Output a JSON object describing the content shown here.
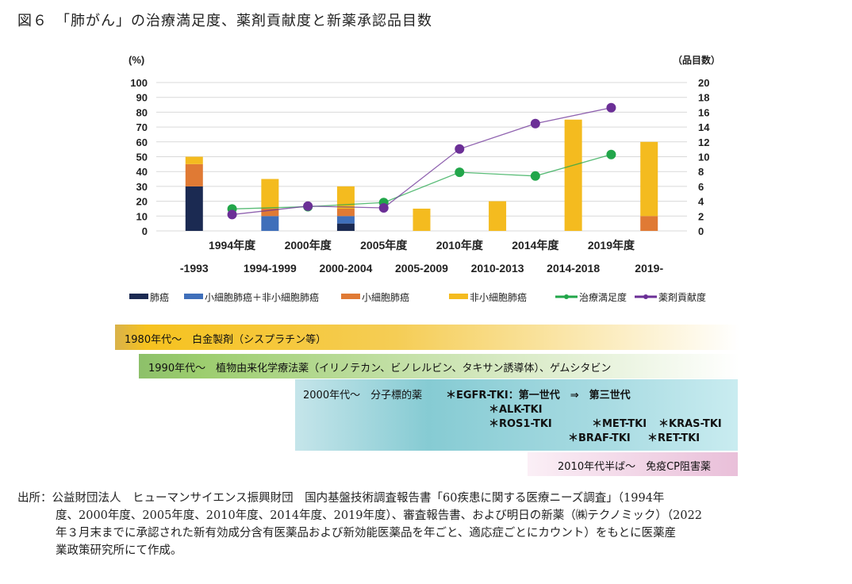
{
  "title": "図６　「肺がん」の治療満足度、薬剤貢献度と新薬承認品目数",
  "chart_data": {
    "type": "bar+line",
    "left_axis_label": "(%)",
    "right_axis_label": "（品目数）",
    "left_ylim": [
      0,
      100
    ],
    "right_ylim": [
      0,
      20
    ],
    "left_ticks": [
      "0",
      "10",
      "20",
      "30",
      "40",
      "50",
      "60",
      "70",
      "80",
      "90",
      "100"
    ],
    "right_ticks": [
      "0",
      "2",
      "4",
      "6",
      "8",
      "10",
      "12",
      "14",
      "16",
      "18",
      "20"
    ],
    "grid": true,
    "legend_position": "bottom",
    "categories": [
      "-1993",
      "1994-1999",
      "2000-2004",
      "2005-2009",
      "2010-2013",
      "2014-2018",
      "2019-"
    ],
    "survey_years": [
      "1994年度",
      "2000年度",
      "2005年度",
      "2010年度",
      "2014年度",
      "2019年度"
    ],
    "bar_series": [
      {
        "name": "肺癌",
        "color": "#1b2a52",
        "values": [
          6,
          0,
          1,
          0,
          0,
          0,
          0
        ]
      },
      {
        "name": "小細胞肺癌＋非小細胞肺癌",
        "color": "#3f6fba",
        "values": [
          0,
          2,
          1,
          0,
          0,
          0,
          0
        ]
      },
      {
        "name": "小細胞肺癌",
        "color": "#e07a34",
        "values": [
          3,
          1,
          1,
          0,
          0,
          0,
          2
        ]
      },
      {
        "name": "非小細胞肺癌",
        "color": "#f4bb1f",
        "values": [
          1,
          4,
          3,
          3,
          4,
          15,
          10
        ]
      }
    ],
    "line_series": [
      {
        "name": "治療満足度",
        "color": "#22a64a",
        "values": [
          14.8,
          16.3,
          19.1,
          39.5,
          37.0,
          51.5
        ]
      },
      {
        "name": "薬剤貢献度",
        "color": "#6b2f96",
        "values": [
          11.0,
          16.7,
          15.5,
          55.2,
          72.3,
          83.0
        ]
      }
    ]
  },
  "bands": {
    "b1": "1980年代～　白金製剤（シスプラチン等）",
    "b2": "1990年代～　植物由来化学療法薬（イリノテカン、ビノレルビン、タキサン誘導体）、ゲムシタビン",
    "b3": {
      "head": "2000年代～　分子標的薬",
      "egfr": "＊EGFR-TKI：第一世代　⇒　第三世代",
      "alk": "＊ALK-TKI",
      "ros1": "＊ROS1-TKI",
      "met": "＊MET-TKI",
      "kras": "＊KRAS-TKI",
      "braf": "＊BRAF-TKI",
      "ret": "＊RET-TKI"
    },
    "b4": "2010年代半ば～　免疫CP阻害薬"
  },
  "footer": [
    "出所：公益財団法人　ヒューマンサイエンス振興財団　国内基盤技術調査報告書「60疾患に関する医療ニーズ調査」（1994年",
    "度、2000年度、2005年度、2010年度、2014年度、2019年度）、審査報告書、および明日の新薬（㈱テクノミック）（2022",
    "年３月末までに承認された新有効成分含有医薬品および新効能医薬品を年ごと、適応症ごとにカウント）をもとに医薬産",
    "業政策研究所にて作成。"
  ]
}
